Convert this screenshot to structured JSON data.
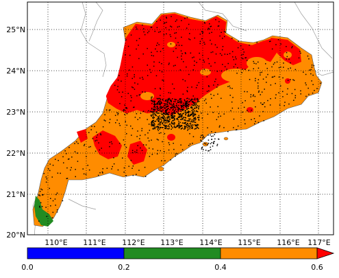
{
  "map": {
    "lat_ticks": [
      "25°N",
      "24°N",
      "23°N",
      "22°N",
      "21°N",
      "20°N"
    ],
    "lon_ticks": [
      "110°E",
      "111°E",
      "112°E",
      "113°E",
      "114°E",
      "115°E",
      "116°E",
      "117°E"
    ],
    "extent": {
      "lon": [
        109.6,
        117.4
      ],
      "lat": [
        20.0,
        25.7
      ]
    },
    "grid": "dotted"
  },
  "colorbar": {
    "ticks": [
      "0.0",
      "0.2",
      "0.4",
      "0.6"
    ],
    "colors": {
      "0.0-0.2": "#0000ff",
      "0.2-0.4": "#228b22",
      "0.4-0.6": "#ff8c00",
      ">0.6": "#ff0000"
    }
  },
  "regions": {
    "red": "#ff0000",
    "orange": "#ff8c00",
    "green": "#228b22",
    "points": "#000000"
  },
  "icons": {
    "colorbar_extend": "triangle-right-icon"
  }
}
